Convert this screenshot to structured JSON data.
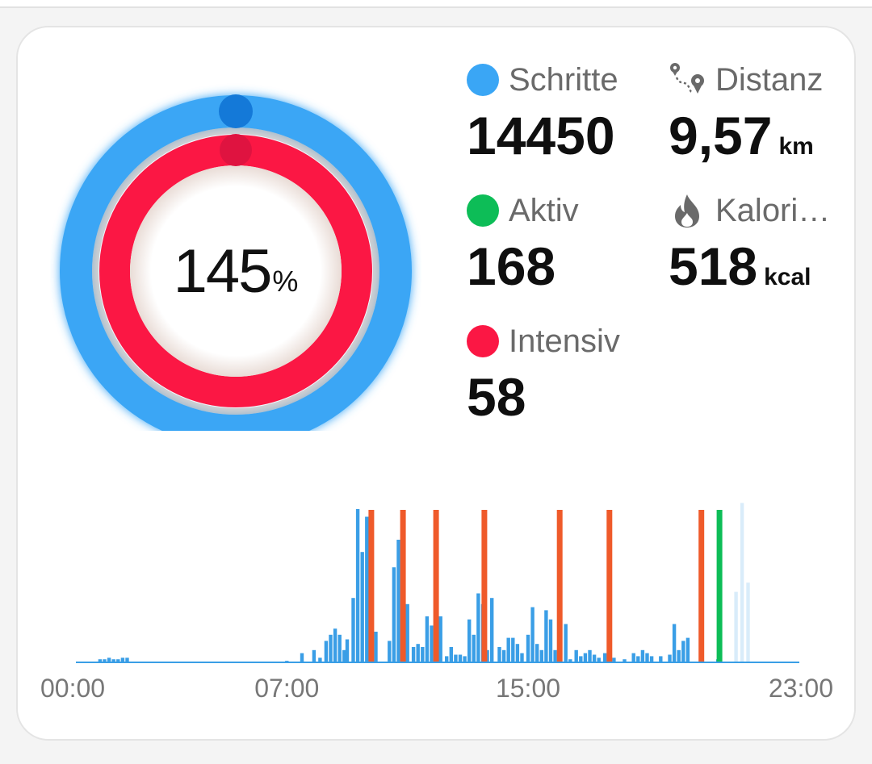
{
  "ring": {
    "percent": "145",
    "percent_unit": "%",
    "outer_color": "#3aa6f5",
    "inner_color": "#fb1744"
  },
  "stats": {
    "steps": {
      "label": "Schritte",
      "value": "14450",
      "color": "#3aa6f5"
    },
    "distance": {
      "label": "Distanz",
      "value": "9,57",
      "unit": "km",
      "icon": "route-pin-icon"
    },
    "active": {
      "label": "Aktiv",
      "value": "168",
      "color": "#0dbd57"
    },
    "calories": {
      "label": "Kalori…",
      "value": "518",
      "unit": "kcal",
      "icon": "flame-icon"
    },
    "intense": {
      "label": "Intensiv",
      "value": "58",
      "color": "#fb1744"
    }
  },
  "chart_data": {
    "type": "bar",
    "x_ticks": [
      "00:00",
      "07:00",
      "15:00",
      "23:00"
    ],
    "bar_color": "#3a9ee6",
    "faded_bar_color": "#d9ecfa",
    "marker_colors": {
      "intense": "#ef5a2a",
      "active": "#0dbd57"
    },
    "series": [
      {
        "values": [
          [
            0.8,
            0.02
          ],
          [
            0.95,
            0.02
          ],
          [
            1.1,
            0.03
          ],
          [
            1.25,
            0.02
          ],
          [
            1.4,
            0.02
          ],
          [
            1.55,
            0.03
          ],
          [
            1.7,
            0.03
          ],
          [
            7.0,
            0.01
          ],
          [
            7.5,
            0.06
          ],
          [
            7.9,
            0.08
          ],
          [
            8.1,
            0.03
          ],
          [
            8.3,
            0.14
          ],
          [
            8.45,
            0.18
          ],
          [
            8.6,
            0.22
          ],
          [
            8.75,
            0.18
          ],
          [
            8.9,
            0.08
          ],
          [
            9.0,
            0.15
          ],
          [
            9.2,
            0.42
          ],
          [
            9.35,
            1.0
          ],
          [
            9.5,
            0.72
          ],
          [
            9.65,
            0.95
          ],
          [
            9.8,
            0.7
          ],
          [
            9.95,
            0.2
          ],
          [
            10.4,
            0.14
          ],
          [
            10.55,
            0.62
          ],
          [
            10.7,
            0.8
          ],
          [
            10.85,
            0.5
          ],
          [
            11.0,
            0.38
          ],
          [
            11.2,
            0.1
          ],
          [
            11.35,
            0.12
          ],
          [
            11.5,
            0.1
          ],
          [
            11.65,
            0.3
          ],
          [
            11.8,
            0.24
          ],
          [
            11.95,
            0.12
          ],
          [
            12.1,
            0.3
          ],
          [
            12.3,
            0.04
          ],
          [
            12.45,
            0.1
          ],
          [
            12.6,
            0.05
          ],
          [
            12.75,
            0.05
          ],
          [
            12.9,
            0.04
          ],
          [
            13.05,
            0.28
          ],
          [
            13.2,
            0.18
          ],
          [
            13.35,
            0.45
          ],
          [
            13.5,
            0.38
          ],
          [
            13.65,
            0.08
          ],
          [
            13.8,
            0.42
          ],
          [
            14.05,
            0.1
          ],
          [
            14.2,
            0.08
          ],
          [
            14.35,
            0.16
          ],
          [
            14.5,
            0.16
          ],
          [
            14.65,
            0.12
          ],
          [
            14.8,
            0.06
          ],
          [
            15.0,
            0.18
          ],
          [
            15.15,
            0.36
          ],
          [
            15.3,
            0.12
          ],
          [
            15.45,
            0.08
          ],
          [
            15.6,
            0.34
          ],
          [
            15.75,
            0.28
          ],
          [
            15.9,
            0.08
          ],
          [
            16.05,
            0.08
          ],
          [
            16.25,
            0.25
          ],
          [
            16.4,
            0.02
          ],
          [
            16.6,
            0.08
          ],
          [
            16.75,
            0.04
          ],
          [
            16.9,
            0.06
          ],
          [
            17.05,
            0.08
          ],
          [
            17.2,
            0.05
          ],
          [
            17.35,
            0.03
          ],
          [
            17.55,
            0.06
          ],
          [
            17.7,
            0.05
          ],
          [
            17.85,
            0.03
          ],
          [
            18.2,
            0.02
          ],
          [
            18.5,
            0.06
          ],
          [
            18.65,
            0.04
          ],
          [
            18.8,
            0.08
          ],
          [
            18.95,
            0.06
          ],
          [
            19.1,
            0.04
          ],
          [
            19.4,
            0.04
          ],
          [
            19.7,
            0.05
          ],
          [
            19.85,
            0.25
          ],
          [
            20.0,
            0.08
          ],
          [
            20.15,
            0.14
          ],
          [
            20.3,
            0.16
          ],
          [
            21.3,
            0.02
          ],
          [
            21.9,
            0.46
          ],
          [
            22.1,
            1.04
          ],
          [
            22.3,
            0.52
          ]
        ]
      }
    ],
    "intense_markers": [
      9.8,
      10.85,
      11.95,
      13.55,
      16.05,
      17.7,
      20.75
    ],
    "active_markers": [
      21.35
    ]
  }
}
